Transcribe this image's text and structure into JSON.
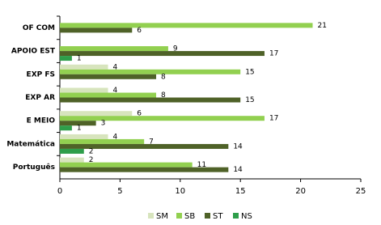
{
  "chart_data": {
    "type": "bar",
    "orientation": "horizontal",
    "categories": [
      "OF COM",
      "APOIO EST",
      "EXP FS",
      "EXP AR",
      "E MEIO",
      "Matemática",
      "Português"
    ],
    "series": [
      {
        "name": "SM",
        "color": "#d7e4bd",
        "values": [
          null,
          null,
          4,
          4,
          6,
          4,
          2
        ]
      },
      {
        "name": "SB",
        "color": "#92d050",
        "values": [
          21,
          9,
          15,
          8,
          17,
          7,
          11
        ]
      },
      {
        "name": "ST",
        "color": "#4f6228",
        "values": [
          6,
          17,
          8,
          15,
          3,
          14,
          14
        ]
      },
      {
        "name": "NS",
        "color": "#2e9e4a",
        "values": [
          null,
          1,
          null,
          null,
          1,
          2,
          null
        ]
      }
    ],
    "xlim": [
      0,
      25
    ],
    "xticks": [
      0,
      5,
      10,
      15,
      20,
      25
    ],
    "legend": "bottom"
  }
}
